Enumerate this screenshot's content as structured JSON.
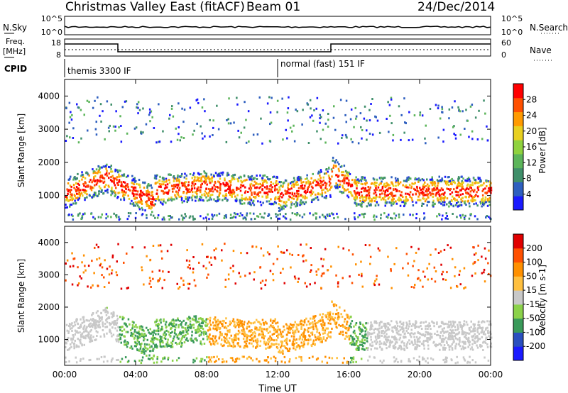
{
  "header": {
    "station": "Christmas Valley East (fitACF)",
    "beam": "Beam 01",
    "date": "24/Dec/2014"
  },
  "nsky_panel": {
    "left_label": "N.Sky",
    "left_ticks": [
      "10^5",
      "10^0"
    ],
    "right_label": "N.Search",
    "right_ticks": [
      "10^5",
      "10^0"
    ]
  },
  "freq_panel": {
    "left_label_1": "Freq.",
    "left_label_2": "[MHz]",
    "left_ticks": [
      "18",
      "8"
    ],
    "right_label": "Nave",
    "right_ticks": [
      "60",
      "0"
    ]
  },
  "cpid": {
    "label": "CPID",
    "segment_1": "themis 3300 IF",
    "segment_2": "normal (fast) 151 IF"
  },
  "chart_data": [
    {
      "type": "heatmap",
      "name": "power",
      "ylabel": "Slant Range [km]",
      "xlabel": "Time UT",
      "yticks": [
        1000,
        2000,
        3000,
        4000
      ],
      "ylim": [
        200,
        4500
      ],
      "xlim_hours": [
        0,
        24
      ],
      "colorbar": {
        "label": "Power [dB]",
        "ticks": [
          "28",
          "24",
          "20",
          "16",
          "12",
          "8",
          "4"
        ],
        "colors": [
          "#1a1aff",
          "#2e5fbf",
          "#3f8f6a",
          "#5cb55a",
          "#8fd23e",
          "#e8d020",
          "#ff9a00",
          "#ff5000",
          "#ff0000"
        ]
      }
    },
    {
      "type": "heatmap",
      "name": "velocity",
      "ylabel": "Slant Range [km]",
      "xlabel": "Time UT",
      "yticks": [
        1000,
        2000,
        3000,
        4000
      ],
      "ylim": [
        200,
        4500
      ],
      "xlim_hours": [
        0,
        24
      ],
      "xticks": [
        "00:00",
        "04:00",
        "08:00",
        "12:00",
        "16:00",
        "20:00",
        "00:00"
      ],
      "colorbar": {
        "label": "Velocity [m s-1]",
        "ticks": [
          "200",
          "100",
          "50",
          "15",
          "-15",
          "-50",
          "-100",
          "-200"
        ],
        "colors": [
          "#1a1aff",
          "#2a4fbf",
          "#3a9a5a",
          "#8bd24a",
          "#c8c8c8",
          "#ffc040",
          "#ff9000",
          "#ff5000",
          "#e00000"
        ]
      }
    }
  ]
}
